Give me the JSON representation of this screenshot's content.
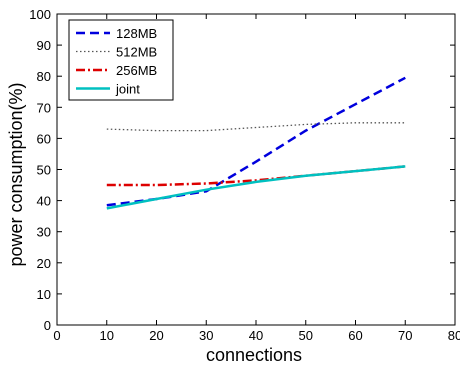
{
  "chart_data": {
    "type": "line",
    "xlabel": "connections",
    "ylabel": "power  consumption(%)",
    "xlim": [
      0,
      80
    ],
    "ylim": [
      0,
      100
    ],
    "xticks": [
      0,
      10,
      20,
      30,
      40,
      50,
      60,
      70,
      80
    ],
    "yticks": [
      0,
      10,
      20,
      30,
      40,
      50,
      60,
      70,
      80,
      90,
      100
    ],
    "grid": false,
    "legend_position": "top-left",
    "series": [
      {
        "name": "128MB",
        "color": "#0000dd",
        "dash": "dashed",
        "x": [
          10,
          20,
          30,
          40,
          50,
          60,
          70
        ],
        "y": [
          38.5,
          40.5,
          43.0,
          52.5,
          62.5,
          71.0,
          79.5
        ]
      },
      {
        "name": "512MB",
        "color": "#555555",
        "dash": "dotted",
        "x": [
          10,
          20,
          30,
          40,
          50,
          60,
          70
        ],
        "y": [
          63.0,
          62.5,
          62.5,
          63.5,
          64.5,
          65.0,
          65.0
        ]
      },
      {
        "name": "256MB",
        "color": "#dd0000",
        "dash": "dashdot",
        "x": [
          10,
          20,
          30,
          40,
          50,
          60,
          70
        ],
        "y": [
          45.0,
          45.0,
          45.5,
          46.5,
          48.0,
          49.5,
          51.0
        ]
      },
      {
        "name": "joint",
        "color": "#00c0c0",
        "dash": "solid",
        "x": [
          10,
          20,
          30,
          40,
          50,
          60,
          70
        ],
        "y": [
          37.5,
          40.5,
          43.5,
          46.0,
          48.0,
          49.5,
          51.0
        ]
      }
    ]
  }
}
